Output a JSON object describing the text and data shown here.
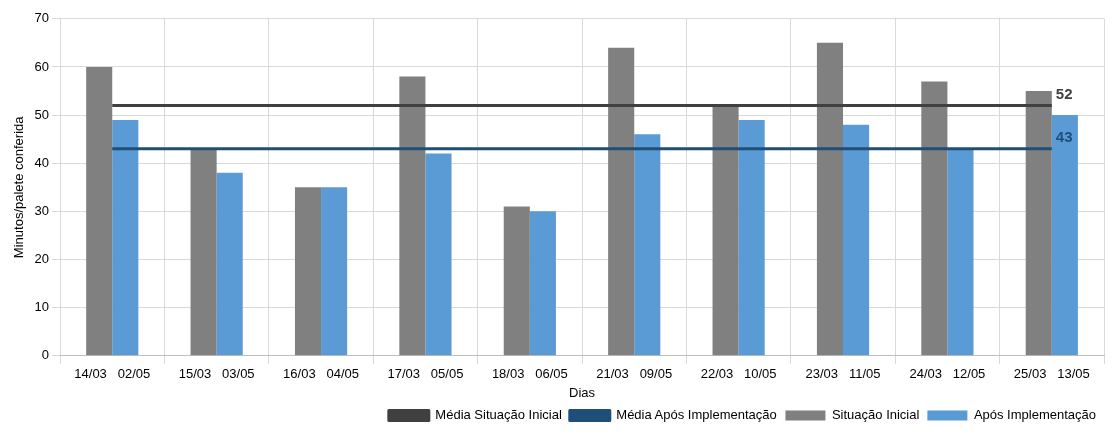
{
  "chart_data": {
    "type": "bar",
    "categories": [
      "14/03   02/05",
      "15/03   03/05",
      "16/03   04/05",
      "17/03   05/05",
      "18/03   06/05",
      "21/03   09/05",
      "22/03   10/05",
      "23/03   11/05",
      "24/03   12/05",
      "25/03   13/05"
    ],
    "xlabel": "Dias",
    "ylabel": "Minutos/palete conferida",
    "series": [
      {
        "name": "Situação Inicial",
        "color": "#808080",
        "values": [
          60,
          43,
          35,
          58,
          31,
          64,
          52,
          65,
          57,
          55
        ]
      },
      {
        "name": "Após Implementação",
        "color": "#5b9bd5",
        "values": [
          49,
          38,
          35,
          42,
          30,
          46,
          49,
          48,
          43,
          50
        ]
      },
      {
        "name": "Média Situação Inicial",
        "type": "line",
        "color": "#404040",
        "values": [
          52,
          52,
          52,
          52,
          52,
          52,
          52,
          52,
          52,
          52
        ],
        "value_labels": [
          null,
          null,
          null,
          null,
          null,
          null,
          null,
          null,
          null,
          "52"
        ]
      },
      {
        "name": "Média Após Implementação",
        "type": "line",
        "color": "#1f4e79",
        "values": [
          43,
          43,
          43,
          43,
          43,
          43,
          43,
          43,
          43,
          43
        ],
        "value_labels": [
          null,
          null,
          null,
          null,
          null,
          null,
          null,
          null,
          null,
          "43"
        ]
      }
    ],
    "ylim": [
      0,
      70
    ],
    "yticks": [
      0,
      10,
      20,
      30,
      40,
      50,
      60,
      70
    ],
    "grid": true,
    "legend": "bottom right",
    "marker": "none",
    "line_style": "solid"
  }
}
